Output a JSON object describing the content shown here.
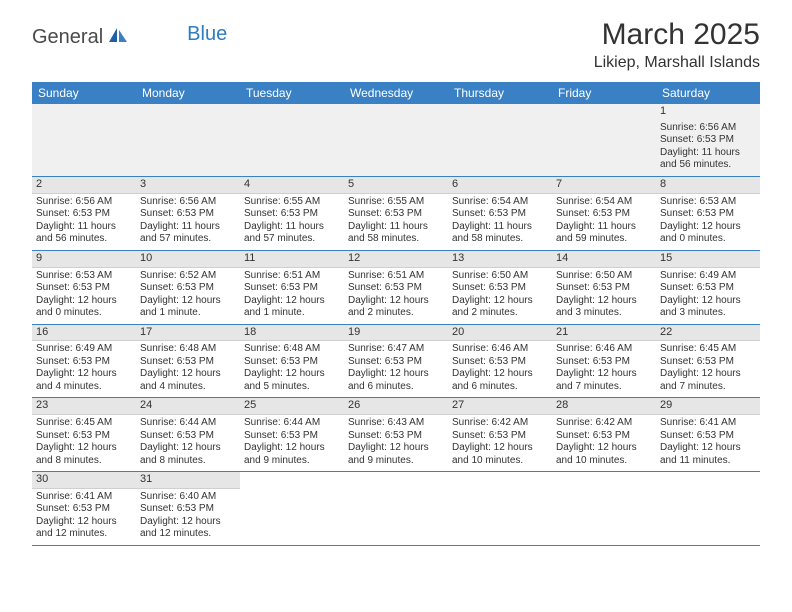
{
  "logo": {
    "part1": "General",
    "part2": "Blue"
  },
  "title": "March 2025",
  "location": "Likiep, Marshall Islands",
  "colors": {
    "header_bg": "#3a80c4",
    "header_text": "#ffffff",
    "daynum_bg": "#e6e6e6",
    "week_border": "#3a80c4"
  },
  "day_names": [
    "Sunday",
    "Monday",
    "Tuesday",
    "Wednesday",
    "Thursday",
    "Friday",
    "Saturday"
  ],
  "weeks": [
    [
      null,
      null,
      null,
      null,
      null,
      null,
      {
        "n": "1",
        "sunrise": "Sunrise: 6:56 AM",
        "sunset": "Sunset: 6:53 PM",
        "day1": "Daylight: 11 hours",
        "day2": "and 56 minutes."
      }
    ],
    [
      {
        "n": "2",
        "sunrise": "Sunrise: 6:56 AM",
        "sunset": "Sunset: 6:53 PM",
        "day1": "Daylight: 11 hours",
        "day2": "and 56 minutes."
      },
      {
        "n": "3",
        "sunrise": "Sunrise: 6:56 AM",
        "sunset": "Sunset: 6:53 PM",
        "day1": "Daylight: 11 hours",
        "day2": "and 57 minutes."
      },
      {
        "n": "4",
        "sunrise": "Sunrise: 6:55 AM",
        "sunset": "Sunset: 6:53 PM",
        "day1": "Daylight: 11 hours",
        "day2": "and 57 minutes."
      },
      {
        "n": "5",
        "sunrise": "Sunrise: 6:55 AM",
        "sunset": "Sunset: 6:53 PM",
        "day1": "Daylight: 11 hours",
        "day2": "and 58 minutes."
      },
      {
        "n": "6",
        "sunrise": "Sunrise: 6:54 AM",
        "sunset": "Sunset: 6:53 PM",
        "day1": "Daylight: 11 hours",
        "day2": "and 58 minutes."
      },
      {
        "n": "7",
        "sunrise": "Sunrise: 6:54 AM",
        "sunset": "Sunset: 6:53 PM",
        "day1": "Daylight: 11 hours",
        "day2": "and 59 minutes."
      },
      {
        "n": "8",
        "sunrise": "Sunrise: 6:53 AM",
        "sunset": "Sunset: 6:53 PM",
        "day1": "Daylight: 12 hours",
        "day2": "and 0 minutes."
      }
    ],
    [
      {
        "n": "9",
        "sunrise": "Sunrise: 6:53 AM",
        "sunset": "Sunset: 6:53 PM",
        "day1": "Daylight: 12 hours",
        "day2": "and 0 minutes."
      },
      {
        "n": "10",
        "sunrise": "Sunrise: 6:52 AM",
        "sunset": "Sunset: 6:53 PM",
        "day1": "Daylight: 12 hours",
        "day2": "and 1 minute."
      },
      {
        "n": "11",
        "sunrise": "Sunrise: 6:51 AM",
        "sunset": "Sunset: 6:53 PM",
        "day1": "Daylight: 12 hours",
        "day2": "and 1 minute."
      },
      {
        "n": "12",
        "sunrise": "Sunrise: 6:51 AM",
        "sunset": "Sunset: 6:53 PM",
        "day1": "Daylight: 12 hours",
        "day2": "and 2 minutes."
      },
      {
        "n": "13",
        "sunrise": "Sunrise: 6:50 AM",
        "sunset": "Sunset: 6:53 PM",
        "day1": "Daylight: 12 hours",
        "day2": "and 2 minutes."
      },
      {
        "n": "14",
        "sunrise": "Sunrise: 6:50 AM",
        "sunset": "Sunset: 6:53 PM",
        "day1": "Daylight: 12 hours",
        "day2": "and 3 minutes."
      },
      {
        "n": "15",
        "sunrise": "Sunrise: 6:49 AM",
        "sunset": "Sunset: 6:53 PM",
        "day1": "Daylight: 12 hours",
        "day2": "and 3 minutes."
      }
    ],
    [
      {
        "n": "16",
        "sunrise": "Sunrise: 6:49 AM",
        "sunset": "Sunset: 6:53 PM",
        "day1": "Daylight: 12 hours",
        "day2": "and 4 minutes."
      },
      {
        "n": "17",
        "sunrise": "Sunrise: 6:48 AM",
        "sunset": "Sunset: 6:53 PM",
        "day1": "Daylight: 12 hours",
        "day2": "and 4 minutes."
      },
      {
        "n": "18",
        "sunrise": "Sunrise: 6:48 AM",
        "sunset": "Sunset: 6:53 PM",
        "day1": "Daylight: 12 hours",
        "day2": "and 5 minutes."
      },
      {
        "n": "19",
        "sunrise": "Sunrise: 6:47 AM",
        "sunset": "Sunset: 6:53 PM",
        "day1": "Daylight: 12 hours",
        "day2": "and 6 minutes."
      },
      {
        "n": "20",
        "sunrise": "Sunrise: 6:46 AM",
        "sunset": "Sunset: 6:53 PM",
        "day1": "Daylight: 12 hours",
        "day2": "and 6 minutes."
      },
      {
        "n": "21",
        "sunrise": "Sunrise: 6:46 AM",
        "sunset": "Sunset: 6:53 PM",
        "day1": "Daylight: 12 hours",
        "day2": "and 7 minutes."
      },
      {
        "n": "22",
        "sunrise": "Sunrise: 6:45 AM",
        "sunset": "Sunset: 6:53 PM",
        "day1": "Daylight: 12 hours",
        "day2": "and 7 minutes."
      }
    ],
    [
      {
        "n": "23",
        "sunrise": "Sunrise: 6:45 AM",
        "sunset": "Sunset: 6:53 PM",
        "day1": "Daylight: 12 hours",
        "day2": "and 8 minutes."
      },
      {
        "n": "24",
        "sunrise": "Sunrise: 6:44 AM",
        "sunset": "Sunset: 6:53 PM",
        "day1": "Daylight: 12 hours",
        "day2": "and 8 minutes."
      },
      {
        "n": "25",
        "sunrise": "Sunrise: 6:44 AM",
        "sunset": "Sunset: 6:53 PM",
        "day1": "Daylight: 12 hours",
        "day2": "and 9 minutes."
      },
      {
        "n": "26",
        "sunrise": "Sunrise: 6:43 AM",
        "sunset": "Sunset: 6:53 PM",
        "day1": "Daylight: 12 hours",
        "day2": "and 9 minutes."
      },
      {
        "n": "27",
        "sunrise": "Sunrise: 6:42 AM",
        "sunset": "Sunset: 6:53 PM",
        "day1": "Daylight: 12 hours",
        "day2": "and 10 minutes."
      },
      {
        "n": "28",
        "sunrise": "Sunrise: 6:42 AM",
        "sunset": "Sunset: 6:53 PM",
        "day1": "Daylight: 12 hours",
        "day2": "and 10 minutes."
      },
      {
        "n": "29",
        "sunrise": "Sunrise: 6:41 AM",
        "sunset": "Sunset: 6:53 PM",
        "day1": "Daylight: 12 hours",
        "day2": "and 11 minutes."
      }
    ],
    [
      {
        "n": "30",
        "sunrise": "Sunrise: 6:41 AM",
        "sunset": "Sunset: 6:53 PM",
        "day1": "Daylight: 12 hours",
        "day2": "and 12 minutes."
      },
      {
        "n": "31",
        "sunrise": "Sunrise: 6:40 AM",
        "sunset": "Sunset: 6:53 PM",
        "day1": "Daylight: 12 hours",
        "day2": "and 12 minutes."
      },
      null,
      null,
      null,
      null,
      null
    ]
  ]
}
